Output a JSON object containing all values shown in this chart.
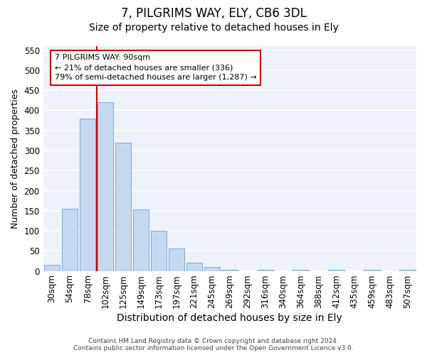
{
  "title": "7, PILGRIMS WAY, ELY, CB6 3DL",
  "subtitle": "Size of property relative to detached houses in Ely",
  "xlabel": "Distribution of detached houses by size in Ely",
  "ylabel": "Number of detached properties",
  "categories": [
    "30sqm",
    "54sqm",
    "78sqm",
    "102sqm",
    "125sqm",
    "149sqm",
    "173sqm",
    "197sqm",
    "221sqm",
    "245sqm",
    "269sqm",
    "292sqm",
    "316sqm",
    "340sqm",
    "364sqm",
    "388sqm",
    "412sqm",
    "435sqm",
    "459sqm",
    "483sqm",
    "507sqm"
  ],
  "values": [
    15,
    155,
    380,
    420,
    320,
    153,
    100,
    55,
    20,
    10,
    3,
    0,
    3,
    0,
    3,
    0,
    3,
    0,
    3,
    0,
    3
  ],
  "bar_color": "#c5d8f0",
  "bar_edge_color": "#7aabdc",
  "background_color": "#eef2fa",
  "grid_color": "#ffffff",
  "ylim": [
    0,
    560
  ],
  "yticks": [
    0,
    50,
    100,
    150,
    200,
    250,
    300,
    350,
    400,
    450,
    500,
    550
  ],
  "vline_color": "#cc0000",
  "vline_x_index": 3,
  "annotation_text": "7 PILGRIMS WAY: 90sqm\n← 21% of detached houses are smaller (336)\n79% of semi-detached houses are larger (1,287) →",
  "annotation_box_color": "#cc0000",
  "footer_line1": "Contains HM Land Registry data © Crown copyright and database right 2024.",
  "footer_line2": "Contains public sector information licensed under the Open Government Licence v3.0.",
  "title_fontsize": 12,
  "subtitle_fontsize": 10,
  "xlabel_fontsize": 10,
  "ylabel_fontsize": 9,
  "tick_fontsize": 8.5
}
